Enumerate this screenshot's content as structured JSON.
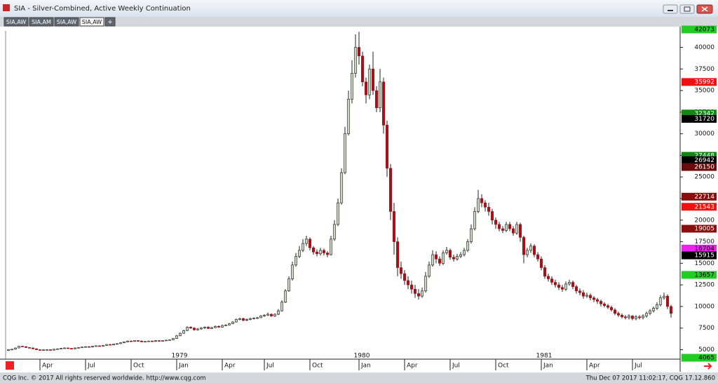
{
  "window": {
    "title": "SIA - Silver-Combined, Active Weekly Continuation",
    "tabs": [
      "SIA,AW",
      "SIA,AM",
      "SIA,AW",
      "SIA,AW"
    ],
    "add_tab": "+"
  },
  "chart_data": {
    "type": "candlestick",
    "categories": [
      null,
      null,
      null,
      null,
      null,
      null,
      null,
      null,
      null,
      "Apr",
      null,
      null,
      null,
      null,
      null,
      null,
      null,
      null,
      null,
      null,
      null,
      null,
      "Jul",
      null,
      null,
      null,
      null,
      null,
      null,
      null,
      null,
      null,
      null,
      null,
      null,
      "Oct",
      null,
      null,
      null,
      null,
      null,
      null,
      null,
      null,
      null,
      null,
      null,
      null,
      "Jan",
      null,
      null,
      null,
      null,
      null,
      null,
      null,
      null,
      null,
      null,
      null,
      null,
      "Apr",
      null,
      null,
      null,
      null,
      null,
      null,
      null,
      null,
      null,
      null,
      null,
      "Jul",
      null,
      null,
      null,
      null,
      null,
      null,
      null,
      null,
      null,
      null,
      null,
      null,
      "Oct",
      null,
      null,
      null,
      null,
      null,
      null,
      null,
      null,
      null,
      null,
      null,
      null,
      null,
      "Jan",
      null,
      null,
      null,
      null,
      null,
      null,
      null,
      null,
      null,
      null,
      null,
      null,
      "Apr",
      null,
      null,
      null,
      null,
      null,
      null,
      null,
      null,
      null,
      null,
      null,
      null,
      "Jul",
      null,
      null,
      null,
      null,
      null,
      null,
      null,
      null,
      null,
      null,
      null,
      null,
      "Oct",
      null,
      null,
      null,
      null,
      null,
      null,
      null,
      null,
      null,
      null,
      null,
      null,
      "Jan",
      null,
      null,
      null,
      null,
      null,
      null,
      null,
      null,
      null,
      null,
      null,
      null,
      "Apr",
      null,
      null,
      null,
      null,
      null,
      null,
      null,
      null,
      null,
      null,
      null,
      null,
      "Jul",
      null,
      null,
      null,
      null,
      null,
      null,
      null,
      null,
      null,
      null,
      null
    ],
    "year_labels": [
      "1979",
      "1980",
      "1981"
    ],
    "open": [
      4900,
      5000,
      5050,
      5200,
      5400,
      5350,
      5250,
      5200,
      5100,
      5000,
      4950,
      4980,
      5000,
      4950,
      5050,
      5100,
      5150,
      5200,
      5150,
      5100,
      5200,
      5250,
      5300,
      5350,
      5300,
      5400,
      5450,
      5400,
      5500,
      5600,
      5550,
      5650,
      5700,
      5800,
      5900,
      6000,
      5950,
      6050,
      6000,
      5900,
      5950,
      6000,
      5950,
      6050,
      6000,
      6050,
      6100,
      6150,
      6300,
      6600,
      6900,
      7200,
      7600,
      7500,
      7300,
      7400,
      7500,
      7600,
      7450,
      7550,
      7700,
      7600,
      7800,
      7850,
      8000,
      8200,
      8500,
      8600,
      8400,
      8500,
      8600,
      8650,
      8700,
      8900,
      9000,
      9100,
      8900,
      9100,
      9500,
      10500,
      11800,
      13200,
      14800,
      15800,
      16500,
      17300,
      17800,
      16800,
      16300,
      16100,
      16500,
      16200,
      16000,
      17800,
      19500,
      22000,
      25500,
      30000,
      34000,
      37000,
      40000,
      39000,
      36000,
      34500,
      37500,
      35000,
      33000,
      36000,
      31000,
      26000,
      21000,
      17500,
      14500,
      13800,
      13000,
      12500,
      12000,
      11500,
      11200,
      11800,
      13500,
      14800,
      16000,
      15500,
      15000,
      16200,
      16500,
      15700,
      15500,
      15800,
      16000,
      16500,
      17500,
      19000,
      21000,
      22500,
      22000,
      21500,
      21000,
      20000,
      19500,
      19000,
      18800,
      19500,
      19000,
      18500,
      19500,
      18000,
      16000,
      16500,
      17000,
      16000,
      15500,
      14500,
      13500,
      13200,
      12800,
      12500,
      12200,
      12000,
      12600,
      12800,
      12300,
      11800,
      11600,
      11200,
      11300,
      11000,
      10800,
      10600,
      10300,
      10100,
      9900,
      9600,
      9200,
      9000,
      8800,
      8700,
      8900,
      8600,
      8800,
      8700,
      8900,
      9200,
      9500,
      9800,
      10200,
      11000,
      11200,
      10000
    ],
    "high": [
      5050,
      5100,
      5250,
      5450,
      5450,
      5400,
      5300,
      5250,
      5150,
      5050,
      5030,
      5050,
      5050,
      5100,
      5150,
      5200,
      5250,
      5250,
      5200,
      5250,
      5300,
      5350,
      5400,
      5400,
      5450,
      5500,
      5500,
      5550,
      5650,
      5650,
      5700,
      5750,
      5850,
      5950,
      6050,
      6050,
      6100,
      6100,
      6050,
      6000,
      6050,
      6050,
      6100,
      6100,
      6100,
      6150,
      6200,
      6350,
      6700,
      7000,
      7300,
      7700,
      7700,
      7600,
      7500,
      7600,
      7700,
      7700,
      7650,
      7800,
      7800,
      7900,
      7950,
      8100,
      8300,
      8600,
      8700,
      8700,
      8600,
      8700,
      8750,
      8800,
      9000,
      9100,
      9300,
      9200,
      9200,
      9700,
      10700,
      12000,
      13500,
      15200,
      16200,
      17000,
      17800,
      18200,
      18000,
      17000,
      16600,
      16800,
      16700,
      16400,
      18200,
      20000,
      22500,
      26000,
      30800,
      35000,
      38500,
      41500,
      41800,
      39500,
      36500,
      38000,
      39500,
      35500,
      37500,
      36500,
      31500,
      26500,
      22000,
      18000,
      15200,
      14200,
      13500,
      13000,
      12500,
      12000,
      12200,
      14000,
      15200,
      16500,
      16400,
      15800,
      16500,
      16900,
      16700,
      16000,
      16100,
      16300,
      16800,
      17800,
      19500,
      21500,
      23500,
      23000,
      22300,
      22000,
      21300,
      20300,
      19800,
      19300,
      19800,
      19800,
      19300,
      19800,
      19700,
      18200,
      16800,
      17300,
      17200,
      16300,
      15800,
      14800,
      13800,
      13500,
      13100,
      12800,
      12500,
      12900,
      13100,
      13000,
      12500,
      12100,
      11900,
      11600,
      11500,
      11200,
      11000,
      10800,
      10500,
      10300,
      10100,
      9800,
      9400,
      9200,
      9000,
      9100,
      9000,
      9000,
      9000,
      9100,
      9400,
      9700,
      10000,
      10500,
      11300,
      11600,
      11400,
      10200
    ],
    "low": [
      4850,
      4950,
      5000,
      5150,
      5300,
      5200,
      5150,
      5050,
      4950,
      4900,
      4900,
      4930,
      4900,
      4900,
      5000,
      5050,
      5100,
      5100,
      5050,
      5050,
      5150,
      5200,
      5250,
      5250,
      5250,
      5350,
      5350,
      5350,
      5450,
      5500,
      5500,
      5600,
      5650,
      5750,
      5850,
      5900,
      5900,
      5950,
      5850,
      5850,
      5900,
      5900,
      5900,
      5950,
      5950,
      6000,
      6050,
      6100,
      6250,
      6550,
      6850,
      7150,
      7400,
      7200,
      7200,
      7300,
      7400,
      7400,
      7400,
      7500,
      7550,
      7550,
      7750,
      7800,
      7950,
      8150,
      8400,
      8300,
      8300,
      8400,
      8500,
      8550,
      8650,
      8800,
      8900,
      8800,
      8800,
      9000,
      9400,
      10400,
      11700,
      13000,
      14600,
      15600,
      16300,
      17000,
      16500,
      16000,
      15800,
      15900,
      15900,
      15700,
      15900,
      17600,
      19300,
      21800,
      25300,
      29800,
      33500,
      36500,
      38000,
      35500,
      33500,
      34000,
      34500,
      32500,
      32500,
      30000,
      25000,
      20000,
      16000,
      13500,
      13200,
      12500,
      12000,
      11500,
      11000,
      10800,
      11000,
      11600,
      13300,
      14600,
      15000,
      14700,
      14800,
      16000,
      15400,
      15200,
      15300,
      15600,
      15800,
      16300,
      17300,
      18800,
      20800,
      21500,
      21000,
      20500,
      19500,
      19000,
      18700,
      18500,
      18600,
      18700,
      18200,
      18300,
      17500,
      15000,
      15700,
      16200,
      15700,
      15200,
      14200,
      13200,
      12900,
      12500,
      12200,
      11900,
      11700,
      11800,
      12400,
      12000,
      11500,
      11300,
      10900,
      11000,
      10700,
      10500,
      10300,
      10000,
      9900,
      9700,
      9400,
      9000,
      8800,
      8600,
      8500,
      8500,
      8400,
      8400,
      8500,
      8500,
      8700,
      9000,
      9300,
      9600,
      10000,
      10800,
      9700,
      8700
    ],
    "close": [
      5000,
      5050,
      5200,
      5400,
      5350,
      5250,
      5200,
      5100,
      5000,
      4950,
      4980,
      5000,
      4950,
      5050,
      5100,
      5150,
      5200,
      5150,
      5100,
      5200,
      5250,
      5300,
      5350,
      5300,
      5400,
      5450,
      5400,
      5500,
      5600,
      5550,
      5650,
      5700,
      5800,
      5900,
      6000,
      5950,
      6050,
      6000,
      5900,
      5950,
      6000,
      5950,
      6050,
      6000,
      6050,
      6100,
      6150,
      6300,
      6600,
      6900,
      7200,
      7600,
      7500,
      7300,
      7400,
      7500,
      7600,
      7450,
      7550,
      7700,
      7600,
      7800,
      7850,
      8000,
      8200,
      8500,
      8600,
      8400,
      8500,
      8600,
      8650,
      8700,
      8900,
      9000,
      9100,
      8900,
      9100,
      9500,
      10500,
      11800,
      13200,
      14800,
      15800,
      16500,
      17300,
      17800,
      16800,
      16300,
      16100,
      16500,
      16200,
      16000,
      17800,
      19500,
      22000,
      25500,
      30000,
      34000,
      37000,
      40000,
      39000,
      36000,
      34500,
      37500,
      35000,
      33000,
      36000,
      31000,
      26000,
      21000,
      17500,
      14500,
      13800,
      13000,
      12500,
      12000,
      11500,
      11200,
      11800,
      13500,
      14800,
      16000,
      15500,
      15000,
      16200,
      16500,
      15700,
      15500,
      15800,
      16000,
      16500,
      17500,
      19000,
      21000,
      22500,
      22000,
      21500,
      21000,
      20000,
      19500,
      19000,
      18800,
      19500,
      19000,
      18500,
      19500,
      18000,
      16000,
      16500,
      17000,
      16000,
      15500,
      14500,
      13500,
      13200,
      12800,
      12500,
      12200,
      12000,
      12600,
      12800,
      12300,
      11800,
      11600,
      11200,
      11300,
      11000,
      10800,
      10600,
      10300,
      10100,
      9900,
      9600,
      9200,
      9000,
      8800,
      8700,
      8900,
      8600,
      8800,
      8700,
      8900,
      9200,
      9500,
      9800,
      10200,
      11000,
      11200,
      10000,
      9200
    ],
    "up_color": "#c9d6c3",
    "down_color": "#a3141a",
    "ylim": [
      4065,
      42073
    ],
    "yticks": [
      5000,
      7500,
      10000,
      12500,
      15000,
      17500,
      20000,
      22500,
      25000,
      27500,
      30000,
      32500,
      35000,
      37500,
      40000
    ],
    "grid": false,
    "price_markers": [
      {
        "value": 42073,
        "color": "#22cc22"
      },
      {
        "value": 35992,
        "color": "#ee1111"
      },
      {
        "value": 32342,
        "color": "#118811"
      },
      {
        "value": 31720,
        "color": "#000000"
      },
      {
        "value": 27448,
        "color": "#118811"
      },
      {
        "value": 26942,
        "color": "#000000"
      },
      {
        "value": 26150,
        "color": "#6a0a0a"
      },
      {
        "value": 22714,
        "color": "#8a0e0e"
      },
      {
        "value": 21543,
        "color": "#ee1111"
      },
      {
        "value": 19005,
        "color": "#8a0e0e"
      },
      {
        "value": 16704,
        "color": "#ee22ee"
      },
      {
        "value": 15915,
        "color": "#000000"
      },
      {
        "value": 13657,
        "color": "#22cc22"
      },
      {
        "value": 4065,
        "color": "#22cc22"
      }
    ]
  },
  "footer": {
    "copyright": "CQG Inc. © 2017 All rights reserved worldwide. http://www.cqg.com",
    "timestamp": "Thu Dec 07 2017 11:02:17, CQG 17.12.860"
  }
}
